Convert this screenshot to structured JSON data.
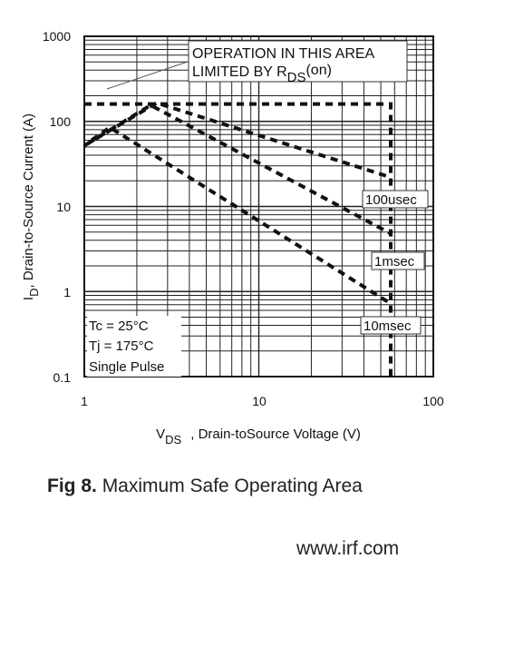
{
  "chart_data": {
    "type": "line",
    "scale": "log-log",
    "x": {
      "label": "V",
      "label_sub": "DS",
      "label_rest": ", Drain-toSource Voltage (V)",
      "range": [
        1,
        100
      ],
      "ticks": [
        "1",
        "10",
        "100"
      ]
    },
    "y": {
      "label": "I",
      "label_sub": "D",
      "label_rest": ",  Drain-to-Source Current (A)",
      "range": [
        0.1,
        1000
      ],
      "ticks": [
        "0.1",
        "1",
        "10",
        "100",
        "1000"
      ]
    },
    "grid": true,
    "series": [
      {
        "name": "100usec",
        "points": [
          [
            1,
            52
          ],
          [
            2.6,
            165
          ],
          [
            57,
            22
          ]
        ]
      },
      {
        "name": "1msec",
        "points": [
          [
            1.05,
            55
          ],
          [
            2.4,
            155
          ],
          [
            57,
            4.8
          ]
        ]
      },
      {
        "name": "10msec",
        "points": [
          [
            1.1,
            60
          ],
          [
            1.4,
            85
          ],
          [
            57,
            0.72
          ]
        ]
      },
      {
        "name": "",
        "points": [
          [
            1,
            160
          ],
          [
            57,
            160
          ],
          [
            57,
            0.1
          ]
        ]
      }
    ],
    "curve_labels": [
      "100usec",
      "1msec",
      "10msec"
    ],
    "annotation": {
      "line1": "OPERATION IN THIS AREA",
      "line2_prefix": "LIMITED BY R",
      "line2_sub": "DS",
      "line2_suffix": "(on)"
    },
    "conditions": [
      "Tc = 25°C",
      "Tj = 175°C",
      "Single Pulse"
    ]
  },
  "caption": {
    "fig_label": "Fig 8.",
    "text": "Maximum Safe Operating Area"
  },
  "website": "www.irf.com"
}
